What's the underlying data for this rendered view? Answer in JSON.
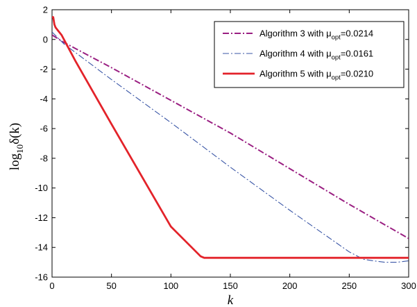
{
  "chart_data": {
    "type": "line",
    "title": "",
    "xlabel": "k",
    "ylabel": {
      "main": "log",
      "sub": "10",
      "tail": "δ(k)"
    },
    "xlim": [
      0,
      300
    ],
    "ylim": [
      -16,
      2
    ],
    "xticks": [
      0,
      50,
      100,
      150,
      200,
      250,
      300
    ],
    "yticks": [
      -16,
      -14,
      -12,
      -10,
      -8,
      -6,
      -4,
      -2,
      0,
      2
    ],
    "grid": false,
    "legend_position": "top-right",
    "series": [
      {
        "name": {
          "main": "Algorithm 3 with μ",
          "sub": "opt",
          "tail": "=0.0214"
        },
        "color": "#9a1f82",
        "line_style": "dash-dot",
        "line_weight": "medium",
        "x": [
          0,
          10,
          50,
          100,
          150,
          200,
          250,
          300
        ],
        "y": [
          0.3,
          -0.2,
          -1.9,
          -4.1,
          -6.3,
          -8.7,
          -11.1,
          -13.4
        ]
      },
      {
        "name": {
          "main": "Algorithm 4 with μ",
          "sub": "opt",
          "tail": "=0.0161"
        },
        "color": "#3a56a6",
        "line_style": "dash-dot",
        "line_weight": "thin",
        "x": [
          0,
          10,
          50,
          100,
          150,
          200,
          250,
          262,
          270,
          280,
          290,
          300
        ],
        "y": [
          0.5,
          -0.3,
          -2.7,
          -5.6,
          -8.6,
          -11.5,
          -14.3,
          -14.8,
          -14.9,
          -15.0,
          -15.0,
          -14.9
        ]
      },
      {
        "name": {
          "main": "Algorithm 5 with μ",
          "sub": "opt",
          "tail": "=0.0210"
        },
        "color": "#e3232a",
        "line_style": "solid",
        "line_weight": "thick",
        "x": [
          0,
          1,
          2,
          3,
          5,
          8,
          12,
          20,
          50,
          100,
          125,
          128,
          150,
          200,
          250,
          300
        ],
        "y": [
          1.5,
          1.5,
          1.0,
          0.8,
          0.6,
          0.3,
          -0.3,
          -1.5,
          -5.7,
          -12.6,
          -14.6,
          -14.7,
          -14.7,
          -14.7,
          -14.7,
          -14.7
        ]
      }
    ]
  }
}
